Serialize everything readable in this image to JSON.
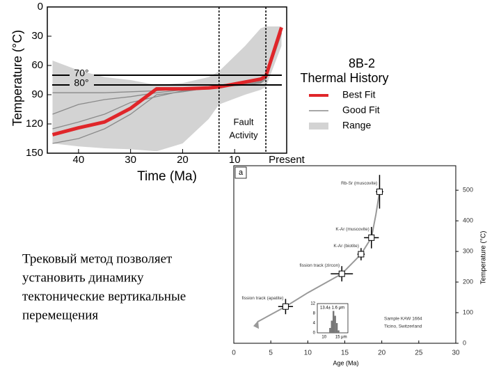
{
  "chart_data": [
    {
      "type": "line",
      "title": "8B-2",
      "subtitle": "Thermal History",
      "x_label": "Time (Ma)",
      "y_label": "Temperature (°C)",
      "xlim": [
        46,
        0
      ],
      "ylim": [
        0,
        150
      ],
      "xticks": [
        40,
        30,
        20,
        10,
        {
          "value": 0,
          "label": "Present"
        }
      ],
      "yticks": [
        0,
        30,
        60,
        90,
        120,
        150
      ],
      "x": [
        45,
        40,
        35,
        30,
        25,
        20,
        15,
        13,
        8,
        5,
        4,
        1
      ],
      "series": [
        {
          "name": "Range",
          "color": "#d3d3d3",
          "low": [
            55,
            65,
            72,
            75,
            80,
            78,
            72,
            66,
            40,
            22,
            20,
            20
          ],
          "high": [
            140,
            143,
            145,
            146,
            148,
            140,
            115,
            100,
            90,
            85,
            82,
            40
          ]
        },
        {
          "name": "Good Fit",
          "color": "#8a8a8a",
          "lines": [
            [
              110,
              100,
              95,
              92,
              88,
              85,
              82,
              80,
              78,
              76,
              73,
              25
            ],
            [
              140,
              135,
              125,
              110,
              90,
              87,
              83,
              81,
              79,
              77,
              72,
              26
            ],
            [
              125,
              118,
              110,
              98,
              92,
              86,
              84,
              82,
              80,
              78,
              74,
              27
            ],
            [
              88,
              88,
              88,
              87,
              86,
              84,
              82,
              80,
              78,
              75,
              71,
              24
            ]
          ]
        },
        {
          "name": "Best Fit",
          "color": "#e0262a",
          "values": [
            131,
            124,
            118,
            104,
            84,
            84,
            83,
            82,
            77,
            74,
            71,
            21
          ]
        }
      ],
      "hlines": [
        {
          "value": 70,
          "label": "70°"
        },
        {
          "value": 80,
          "label": "80°"
        }
      ],
      "vlines": [
        13,
        4
      ],
      "annotation": [
        "Fault",
        "Activity"
      ]
    },
    {
      "type": "scatter",
      "panel_label": "a",
      "x_label": "Age (Ma)",
      "y_label": "Temperature (°C)",
      "xlim": [
        0,
        30
      ],
      "y2lim": [
        0,
        580
      ],
      "xticks": [
        0,
        5,
        10,
        15,
        20,
        25,
        30
      ],
      "y2ticks": [
        0,
        100,
        200,
        300,
        400,
        500
      ],
      "x": [
        19.7,
        18.6,
        17.2,
        14.6,
        7.0
      ],
      "xerr": [
        0.5,
        1,
        0.5,
        1.5,
        1
      ],
      "values": [
        495,
        345,
        291,
        227,
        120
      ],
      "yerr": [
        55,
        35,
        20,
        25,
        25
      ],
      "point_labels": [
        "Rb-Sr (muscovite)",
        "K-Ar (muscovite)",
        "K-Ar (biotite)",
        "fission track (zircon)",
        "fission track (apatite)"
      ],
      "curve": {
        "x": [
          3.2,
          7,
          10,
          14.6,
          17.2,
          18.6,
          19.2,
          19.7
        ],
        "values": [
          70,
          120,
          165,
          227,
          291,
          345,
          420,
          495
        ]
      },
      "sample": [
        "Sample KAW 1664",
        "Ticino, Switzerland"
      ],
      "inset": {
        "type": "histogram",
        "bins": [
          11.5,
          12,
          12.5,
          13,
          13.5,
          14,
          14.5
        ],
        "counts": [
          2,
          5,
          9,
          7,
          4,
          1
        ],
        "xlim": [
          8,
          17
        ],
        "ylim": [
          0,
          12
        ],
        "xticks": [
          10,
          {
            "value": 15,
            "label": "15 μm"
          }
        ],
        "yticks": [
          0,
          4,
          8,
          12
        ],
        "label": "13.4± 1.6 μm"
      }
    }
  ],
  "text": [
    "Трековый метод позволяет",
    "установить динамику",
    "тектонические вертикальные",
    "перемещения"
  ]
}
